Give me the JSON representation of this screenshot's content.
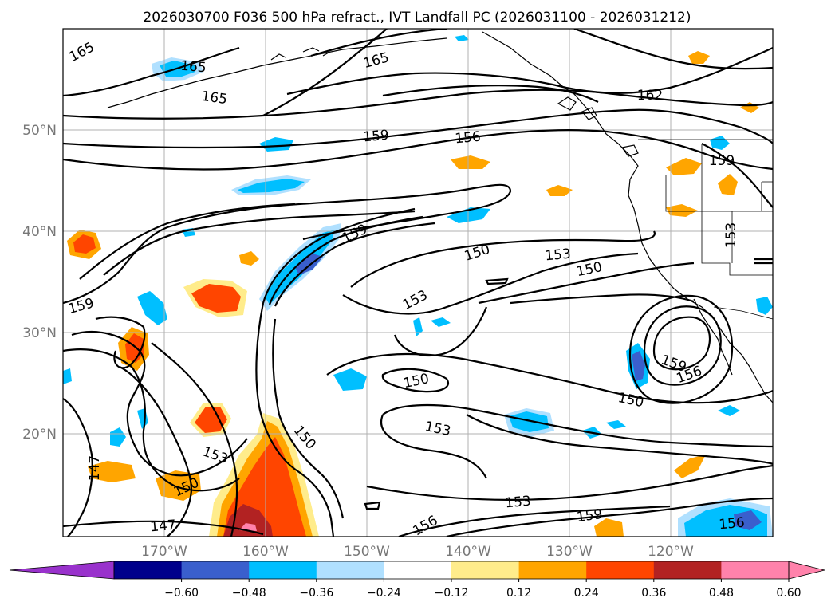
{
  "title": "2026030700 F036 500 hPa refract., IVT Landfall PC (2026031100 - 2026031212)",
  "map": {
    "lon_ticks": [
      "170°W",
      "160°W",
      "150°W",
      "140°W",
      "130°W",
      "120°W"
    ],
    "lat_ticks": [
      "50°N",
      "40°N",
      "30°N",
      "20°N"
    ],
    "grid": true
  },
  "contours": {
    "labels": [
      "165",
      "165",
      "165",
      "165",
      "162",
      "159",
      "156",
      "159",
      "159",
      "150",
      "153",
      "150",
      "153",
      "153",
      "159",
      "150",
      "159",
      "156",
      "150",
      "153",
      "150",
      "153",
      "147",
      "150",
      "153",
      "159",
      "156",
      "147",
      "156"
    ]
  },
  "colorbar": {
    "tick_labels": [
      "−0.60",
      "−0.48",
      "−0.36",
      "−0.24",
      "−0.12",
      "0.12",
      "0.24",
      "0.36",
      "0.48",
      "0.60"
    ],
    "colors": {
      "under": "#9932cc",
      "bins": [
        "#00008b",
        "#3a5fcd",
        "#00bfff",
        "#b0e0ff",
        "#ffffff",
        "#ffec8b",
        "#ffa500",
        "#ff4500",
        "#b22222",
        "#ff82ab"
      ],
      "over": "#ff82ab"
    },
    "extend": "both"
  }
}
